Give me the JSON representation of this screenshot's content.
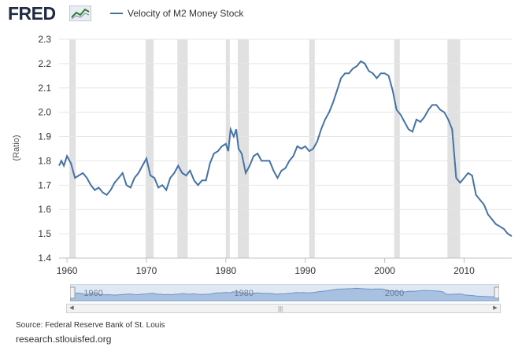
{
  "header": {
    "logo_text": "FRED",
    "logo_icon": "chart-line-icon",
    "legend_label": "Velocity of M2 Money Stock",
    "series_color": "#4572a7"
  },
  "chart_data": {
    "type": "line",
    "title": "",
    "xlabel": "",
    "ylabel": "(Ratio)",
    "xlim": [
      1959,
      2016
    ],
    "ylim": [
      1.4,
      2.3
    ],
    "x_ticks": [
      "1960",
      "1970",
      "1980",
      "1990",
      "2000",
      "2010"
    ],
    "x_tick_values": [
      1960,
      1970,
      1980,
      1990,
      2000,
      2010
    ],
    "y_ticks": [
      "1.4",
      "1.5",
      "1.6",
      "1.7",
      "1.8",
      "1.9",
      "2.0",
      "2.1",
      "2.2",
      "2.3"
    ],
    "y_tick_values": [
      1.4,
      1.5,
      1.6,
      1.7,
      1.8,
      1.9,
      2.0,
      2.1,
      2.2,
      2.3
    ],
    "grid": true,
    "recession_bands": [
      [
        1960.3,
        1961.1
      ],
      [
        1969.9,
        1970.9
      ],
      [
        1973.9,
        1975.2
      ],
      [
        1980.0,
        1980.5
      ],
      [
        1981.5,
        1982.9
      ],
      [
        1990.5,
        1991.2
      ],
      [
        2001.2,
        2001.9
      ],
      [
        2007.9,
        2009.5
      ]
    ],
    "series": [
      {
        "name": "Velocity of M2 Money Stock",
        "x": [
          1959.0,
          1959.3,
          1959.6,
          1960.0,
          1960.5,
          1961.0,
          1961.5,
          1962.0,
          1962.5,
          1963.0,
          1963.5,
          1964.0,
          1964.5,
          1965.0,
          1965.5,
          1966.0,
          1966.5,
          1967.0,
          1967.5,
          1968.0,
          1968.5,
          1969.0,
          1969.5,
          1970.0,
          1970.5,
          1971.0,
          1971.5,
          1972.0,
          1972.5,
          1973.0,
          1973.5,
          1974.0,
          1974.5,
          1975.0,
          1975.5,
          1976.0,
          1976.5,
          1977.0,
          1977.5,
          1978.0,
          1978.5,
          1979.0,
          1979.5,
          1980.0,
          1980.3,
          1980.6,
          1981.0,
          1981.3,
          1981.6,
          1982.0,
          1982.5,
          1983.0,
          1983.5,
          1984.0,
          1984.5,
          1985.0,
          1985.5,
          1986.0,
          1986.5,
          1987.0,
          1987.5,
          1988.0,
          1988.5,
          1989.0,
          1989.5,
          1990.0,
          1990.5,
          1991.0,
          1991.5,
          1992.0,
          1992.5,
          1993.0,
          1993.5,
          1994.0,
          1994.5,
          1995.0,
          1995.5,
          1996.0,
          1996.5,
          1997.0,
          1997.5,
          1998.0,
          1998.5,
          1999.0,
          1999.5,
          2000.0,
          2000.5,
          2001.0,
          2001.5,
          2002.0,
          2002.5,
          2003.0,
          2003.5,
          2004.0,
          2004.5,
          2005.0,
          2005.5,
          2006.0,
          2006.5,
          2007.0,
          2007.5,
          2008.0,
          2008.5,
          2009.0,
          2009.5,
          2010.0,
          2010.5,
          2011.0,
          2011.5,
          2012.0,
          2012.5,
          2013.0,
          2013.5,
          2014.0,
          2014.5,
          2015.0,
          2015.5,
          2016.0
        ],
        "values": [
          1.78,
          1.8,
          1.78,
          1.82,
          1.79,
          1.73,
          1.74,
          1.75,
          1.73,
          1.7,
          1.68,
          1.69,
          1.67,
          1.66,
          1.68,
          1.71,
          1.73,
          1.75,
          1.7,
          1.69,
          1.73,
          1.75,
          1.78,
          1.81,
          1.74,
          1.73,
          1.69,
          1.7,
          1.68,
          1.73,
          1.75,
          1.78,
          1.75,
          1.74,
          1.76,
          1.72,
          1.7,
          1.72,
          1.72,
          1.79,
          1.83,
          1.84,
          1.86,
          1.87,
          1.84,
          1.93,
          1.9,
          1.93,
          1.85,
          1.83,
          1.75,
          1.78,
          1.82,
          1.83,
          1.8,
          1.8,
          1.8,
          1.76,
          1.73,
          1.76,
          1.77,
          1.8,
          1.82,
          1.86,
          1.85,
          1.86,
          1.84,
          1.85,
          1.88,
          1.93,
          1.97,
          2.0,
          2.04,
          2.09,
          2.14,
          2.16,
          2.16,
          2.18,
          2.19,
          2.21,
          2.2,
          2.17,
          2.16,
          2.14,
          2.16,
          2.16,
          2.15,
          2.09,
          2.01,
          1.99,
          1.96,
          1.93,
          1.92,
          1.97,
          1.96,
          1.98,
          2.01,
          2.03,
          2.03,
          2.01,
          2.0,
          1.97,
          1.93,
          1.73,
          1.71,
          1.73,
          1.75,
          1.74,
          1.66,
          1.64,
          1.62,
          1.58,
          1.56,
          1.54,
          1.53,
          1.52,
          1.5,
          1.49
        ]
      }
    ]
  },
  "navigator": {
    "tick_labels": [
      "1960",
      "1980",
      "2000"
    ],
    "tick_values": [
      1960,
      1980,
      2000
    ]
  },
  "footer": {
    "source": "Source: Federal Reserve Bank of St. Louis",
    "site": "research.stlouisfed.org"
  }
}
